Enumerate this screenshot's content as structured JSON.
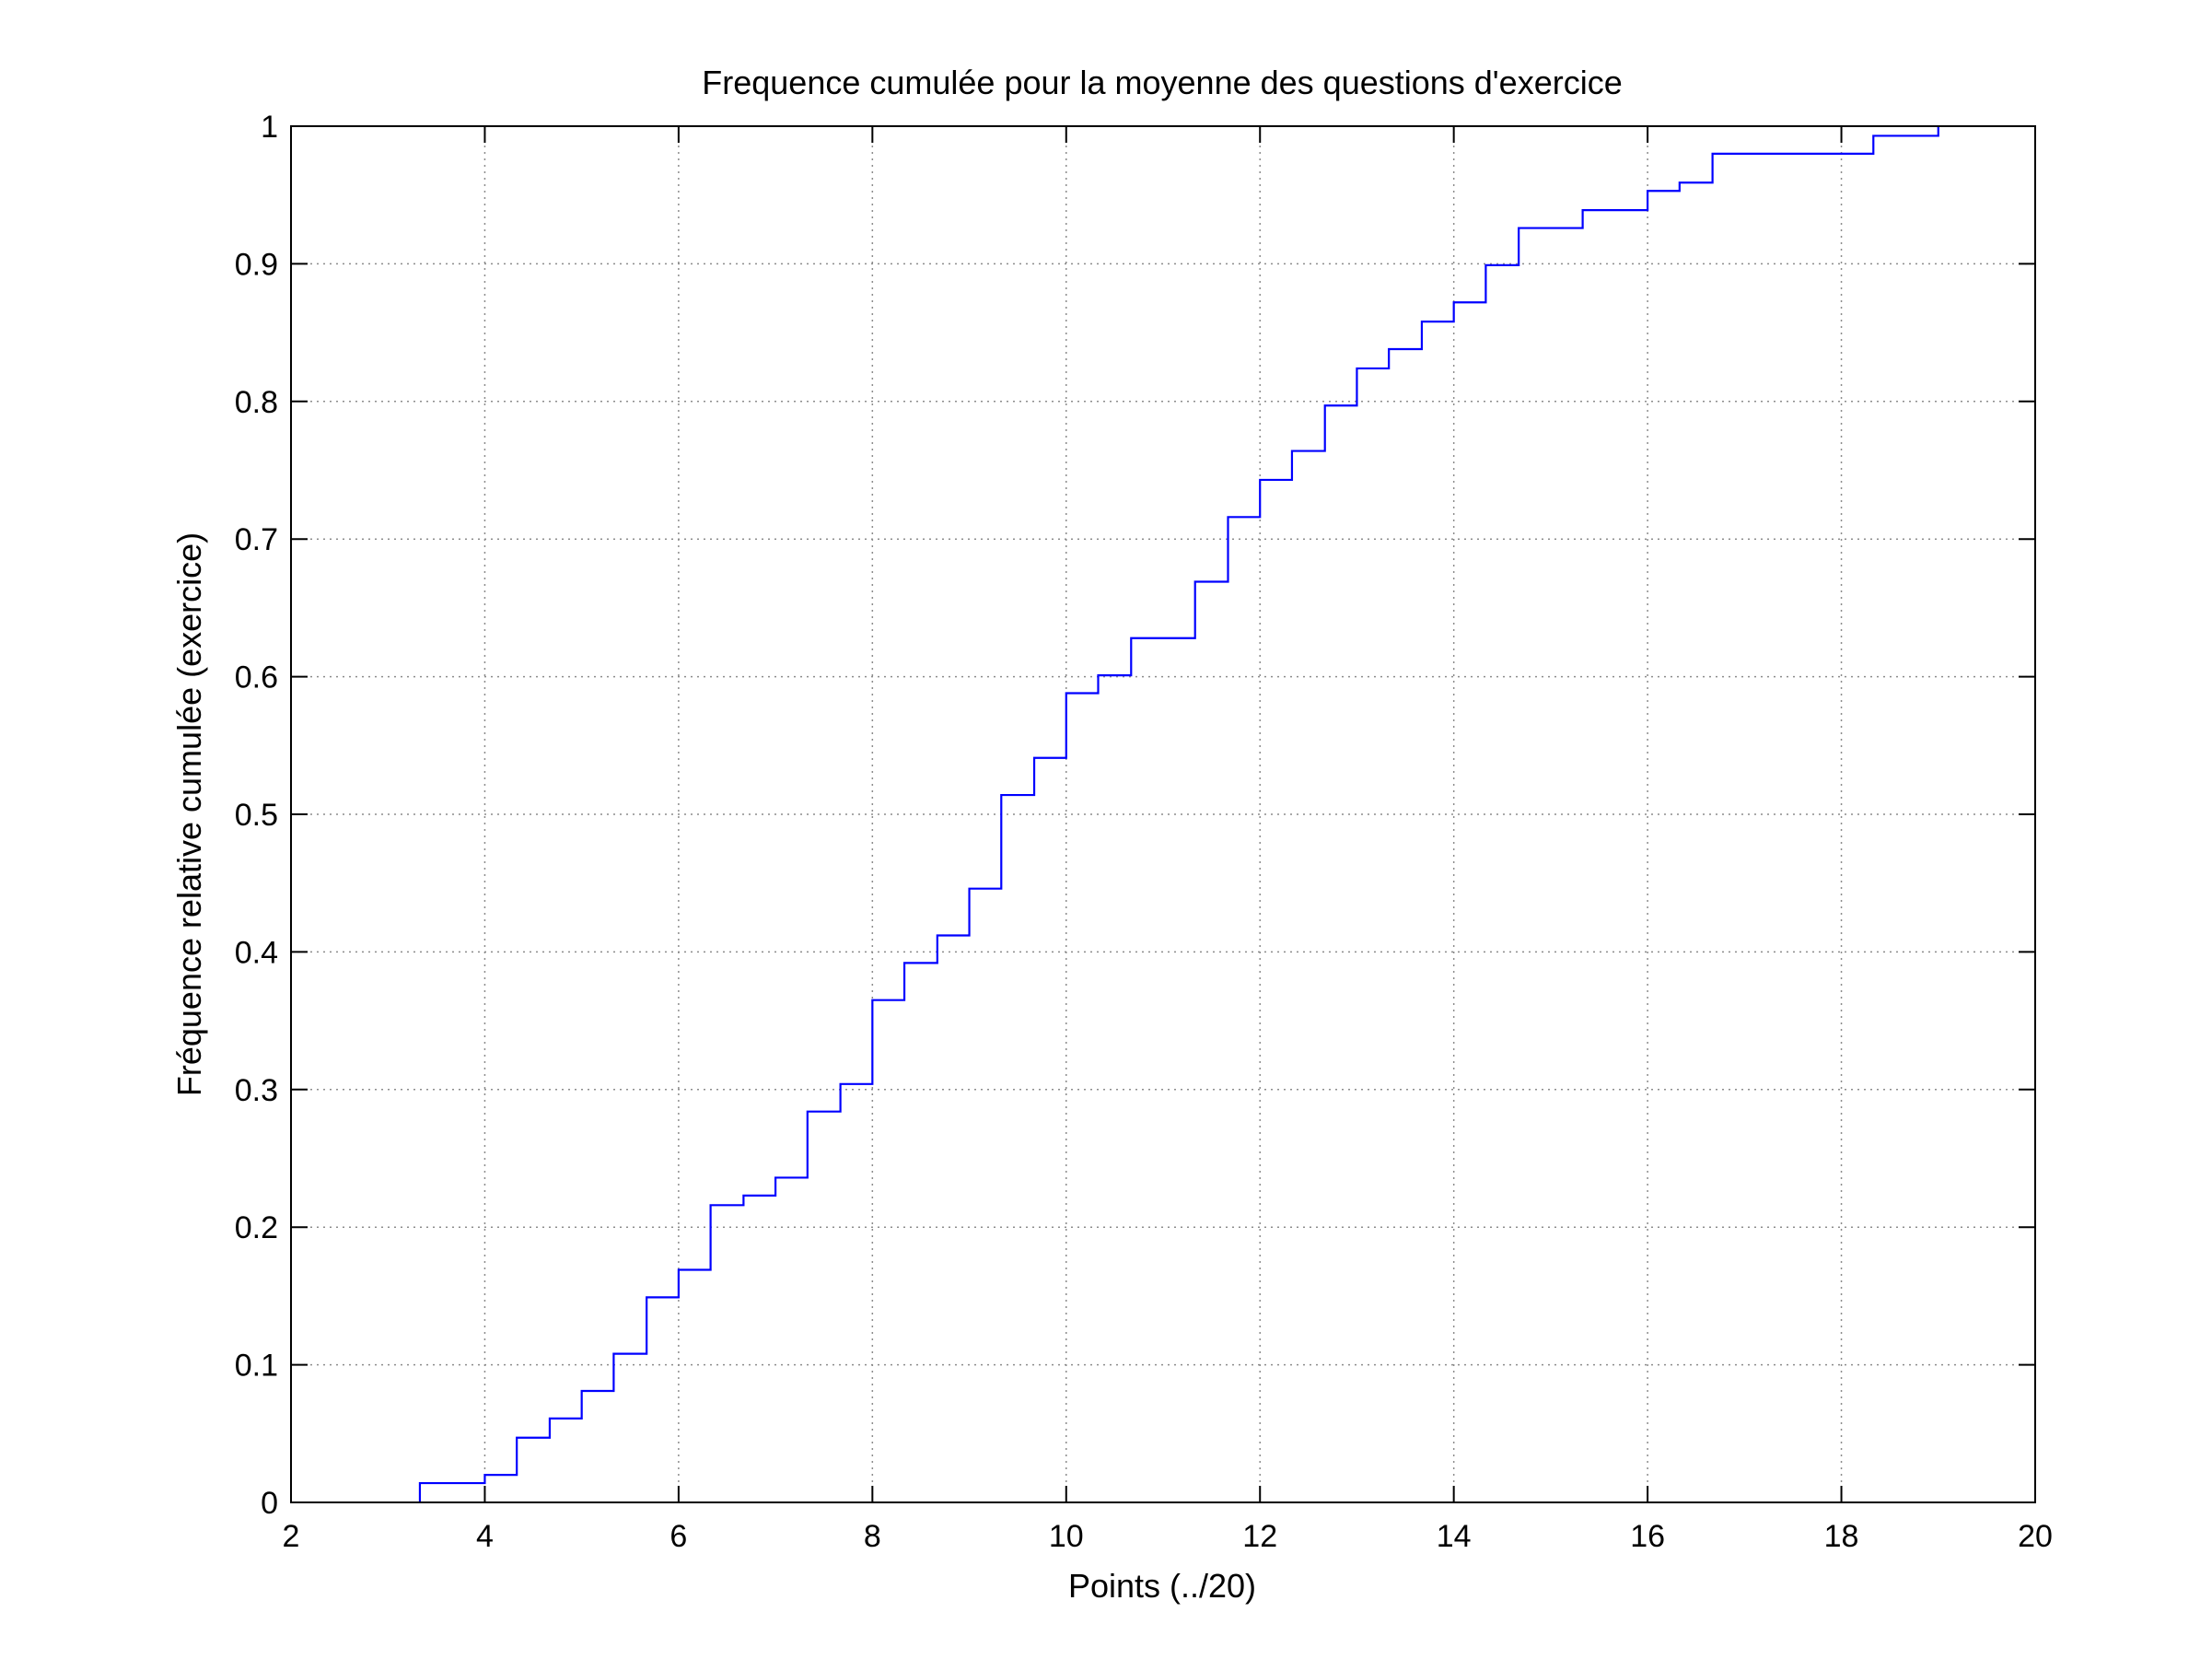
{
  "chart_data": {
    "type": "line",
    "step": true,
    "title": "Frequence cumulée pour la moyenne des questions d'exercice",
    "xlabel": "Points (../20)",
    "ylabel": "Fréquence relative cumulée (exercice)",
    "xlim": [
      2,
      20
    ],
    "ylim": [
      0,
      1
    ],
    "xticks": [
      2,
      4,
      6,
      8,
      10,
      12,
      14,
      16,
      18,
      20
    ],
    "yticks": [
      0,
      0.1,
      0.2,
      0.3,
      0.4,
      0.5,
      0.6,
      0.7,
      0.8,
      0.9,
      1
    ],
    "grid": true,
    "colors": {
      "line": "#0000ff"
    },
    "series": [
      {
        "x": [
          3.33,
          4.0,
          4.33,
          4.67,
          5.0,
          5.33,
          5.67,
          6.0,
          6.33,
          6.67,
          7.0,
          7.33,
          7.67,
          8.0,
          8.33,
          8.67,
          9.0,
          9.33,
          9.67,
          10.0,
          10.33,
          10.67,
          11.33,
          11.67,
          12.0,
          12.33,
          12.67,
          13.0,
          13.33,
          13.67,
          14.0,
          14.33,
          14.67,
          15.33,
          16.0,
          16.33,
          16.67,
          18.33,
          19.0
        ],
        "y": [
          0.014,
          0.02,
          0.047,
          0.061,
          0.081,
          0.108,
          0.149,
          0.169,
          0.216,
          0.223,
          0.236,
          0.284,
          0.304,
          0.365,
          0.392,
          0.412,
          0.446,
          0.514,
          0.541,
          0.588,
          0.601,
          0.628,
          0.669,
          0.716,
          0.743,
          0.764,
          0.797,
          0.824,
          0.838,
          0.858,
          0.872,
          0.899,
          0.926,
          0.939,
          0.953,
          0.959,
          0.98,
          0.993,
          1.0
        ]
      }
    ]
  }
}
